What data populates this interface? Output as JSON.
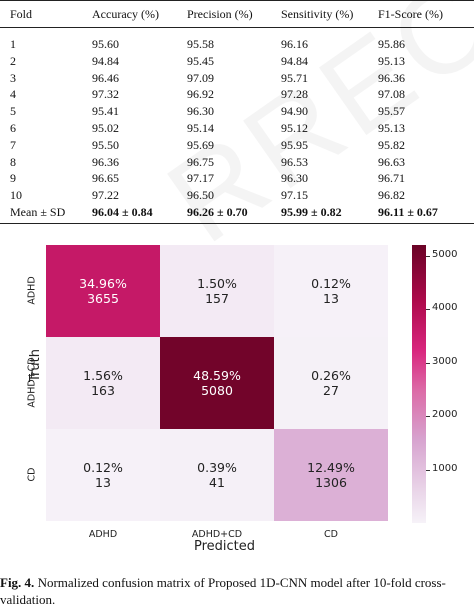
{
  "table": {
    "headers": [
      "Fold",
      "Accuracy (%)",
      "Precision (%)",
      "Sensitivity (%)",
      "F1-Score (%)"
    ],
    "rows": [
      [
        "1",
        "95.60",
        "95.58",
        "96.16",
        "95.86"
      ],
      [
        "2",
        "94.84",
        "95.45",
        "94.84",
        "95.13"
      ],
      [
        "3",
        "96.46",
        "97.09",
        "95.71",
        "96.36"
      ],
      [
        "4",
        "97.32",
        "96.92",
        "97.28",
        "97.08"
      ],
      [
        "5",
        "95.41",
        "96.30",
        "94.90",
        "95.57"
      ],
      [
        "6",
        "95.02",
        "95.14",
        "95.12",
        "95.13"
      ],
      [
        "7",
        "95.50",
        "95.69",
        "95.95",
        "95.82"
      ],
      [
        "8",
        "96.36",
        "96.75",
        "96.53",
        "96.63"
      ],
      [
        "9",
        "96.65",
        "97.17",
        "96.30",
        "96.71"
      ],
      [
        "10",
        "97.22",
        "96.50",
        "97.15",
        "96.82"
      ]
    ],
    "mean_row": [
      "Mean ± SD",
      "96.04 ± 0.84",
      "96.26 ± 0.70",
      "95.99 ± 0.82",
      "96.11 ± 0.67"
    ]
  },
  "chart_data": {
    "type": "heatmap",
    "rows": [
      "ADHD",
      "ADHD+CD",
      "CD"
    ],
    "cols": [
      "ADHD",
      "ADHD+CD",
      "CD"
    ],
    "counts": [
      [
        3655,
        157,
        13
      ],
      [
        163,
        5080,
        27
      ],
      [
        13,
        41,
        1306
      ]
    ],
    "percents": [
      [
        "34.96%",
        "1.50%",
        "0.12%"
      ],
      [
        "1.56%",
        "48.59%",
        "0.26%"
      ],
      [
        "0.12%",
        "0.39%",
        "12.49%"
      ]
    ],
    "xlabel": "Predicted",
    "ylabel": "Truth",
    "colorbar_ticks": [
      "5000",
      "4000",
      "3000",
      "2000",
      "1000"
    ],
    "colorbar_range": [
      0,
      5200
    ]
  },
  "caption": {
    "label": "Fig. 4.",
    "text": " Normalized confusion matrix of Proposed 1D-CNN model after 10-fold cross-validation."
  }
}
